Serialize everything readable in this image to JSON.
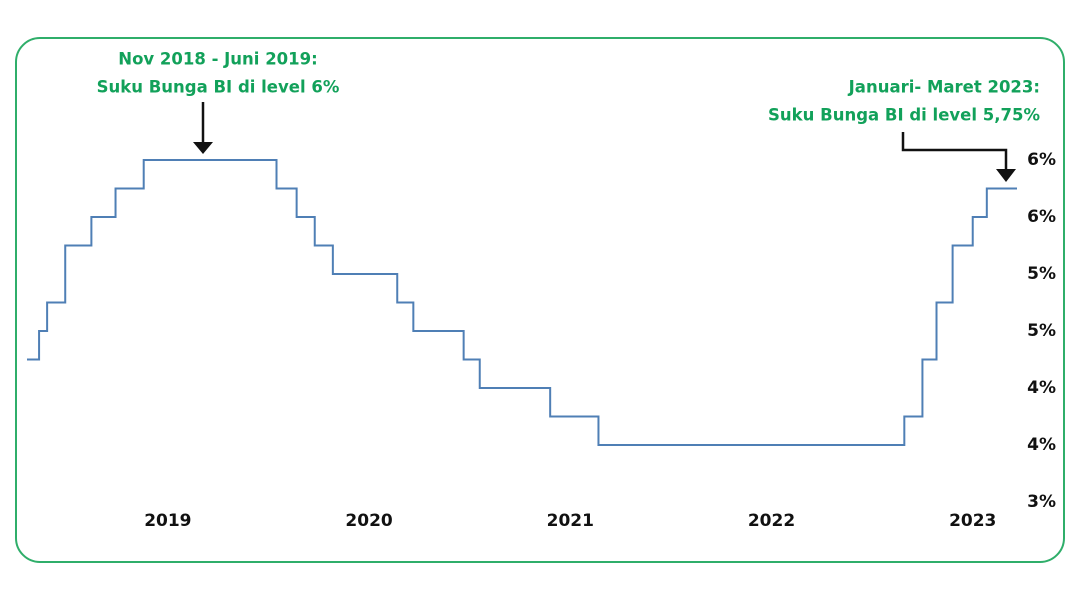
{
  "chart_data": {
    "type": "line",
    "step": true,
    "annotations": [
      {
        "lines": [
          "Nov 2018 - Juni 2019:",
          "Suku Bunga BI di level 6%"
        ]
      },
      {
        "lines": [
          "Januari- Maret 2023:",
          "Suku Bunga BI di level 5,75%"
        ]
      }
    ],
    "x": [
      2018.3,
      2018.36,
      2018.4,
      2018.49,
      2018.62,
      2018.74,
      2018.88,
      2019.54,
      2019.64,
      2019.73,
      2019.82,
      2020.14,
      2020.22,
      2020.47,
      2020.55,
      2020.9,
      2021.14,
      2022.66,
      2022.75,
      2022.82,
      2022.9,
      2023.0,
      2023.07,
      2023.22
    ],
    "values": [
      4.25,
      4.5,
      4.75,
      5.25,
      5.5,
      5.75,
      6,
      5.75,
      5.5,
      5.25,
      5,
      4.75,
      4.5,
      4.25,
      4,
      3.75,
      3.5,
      3.75,
      4.25,
      4.75,
      5.25,
      5.5,
      5.75,
      5.75
    ],
    "color": "#4f7fb5",
    "xlim": [
      2018.3,
      2023.22
    ],
    "xticks": [
      2019,
      2020,
      2021,
      2022,
      2023
    ],
    "ylim": [
      3,
      6
    ],
    "yticks": [
      {
        "value": 6,
        "label": "6%"
      },
      {
        "value": 5.5,
        "label": "6%"
      },
      {
        "value": 5,
        "label": "5%"
      },
      {
        "value": 4.5,
        "label": "5%"
      },
      {
        "value": 4,
        "label": "4%"
      },
      {
        "value": 3.5,
        "label": "4%"
      },
      {
        "value": 3,
        "label": "3%"
      }
    ]
  }
}
